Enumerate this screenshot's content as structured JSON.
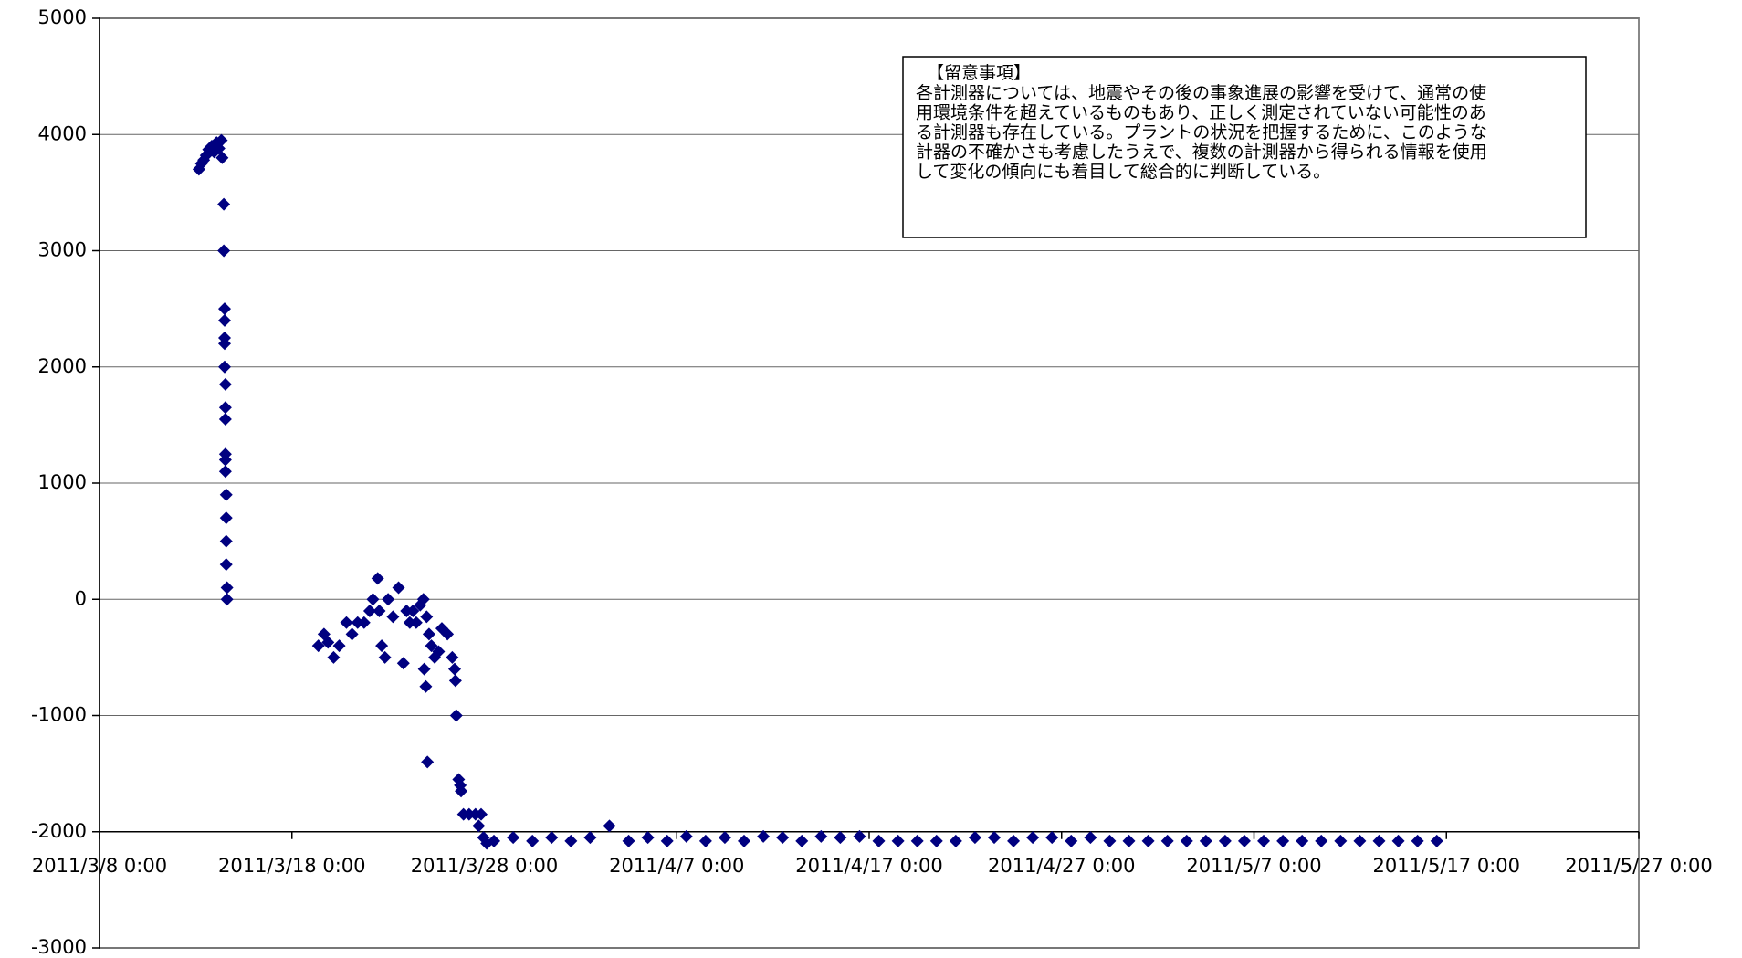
{
  "chart_data": {
    "type": "scatter",
    "color": "#000080",
    "marker": "diamond",
    "grid": true,
    "x_axis_crosses": -2000,
    "annotation": {
      "title": "【留意事項】",
      "lines": [
        "各計測器については、地震やその後の事象進展の影響を受けて、通常の使",
        "用環境条件を超えているものもあり、正しく測定されていない可能性のあ",
        "る計測器も存在している。プラントの状況を把握するために、このような",
        "計器の不確かさも考慮したうえで、複数の計測器から得られる情報を使用",
        "して変化の傾向にも着目して総合的に判断している。"
      ]
    },
    "xlim": [
      "2011/3/8 0:00",
      "2011/5/27 0:00"
    ],
    "xticks": [
      "2011/3/8 0:00",
      "2011/3/18 0:00",
      "2011/3/28 0:00",
      "2011/4/7 0:00",
      "2011/4/17 0:00",
      "2011/4/27 0:00",
      "2011/5/7 0:00",
      "2011/5/17 0:00",
      "2011/5/27 0:00"
    ],
    "ylim": [
      -3000,
      5000
    ],
    "yticks": [
      -3000,
      -2000,
      -1000,
      0,
      1000,
      2000,
      3000,
      4000,
      5000
    ],
    "x": [
      "2011/3/13 4:00",
      "2011/3/13 7:00",
      "2011/3/13 10:00",
      "2011/3/13 13:00",
      "2011/3/13 16:00",
      "2011/3/13 20:00",
      "2011/3/13 23:00",
      "2011/3/14 2:00",
      "2011/3/14 5:00",
      "2011/3/14 8:00",
      "2011/3/14 9:00",
      "2011/3/14 11:00",
      "2011/3/14 11:00",
      "2011/3/14 12:00",
      "2011/3/14 12:00",
      "2011/3/14 12:00",
      "2011/3/14 12:00",
      "2011/3/14 12:00",
      "2011/3/14 13:00",
      "2011/3/14 13:00",
      "2011/3/14 13:00",
      "2011/3/14 13:00",
      "2011/3/14 13:00",
      "2011/3/14 13:00",
      "2011/3/14 14:00",
      "2011/3/14 14:00",
      "2011/3/14 14:00",
      "2011/3/14 14:00",
      "2011/3/14 15:00",
      "2011/3/14 15:00",
      "2011/3/19 9:00",
      "2011/3/19 16:00",
      "2011/3/19 21:00",
      "2011/3/20 4:00",
      "2011/3/20 11:00",
      "2011/3/20 20:00",
      "2011/3/21 3:00",
      "2011/3/21 10:00",
      "2011/3/21 18:00",
      "2011/3/22 1:00",
      "2011/3/22 5:00",
      "2011/3/22 11:00",
      "2011/3/22 13:00",
      "2011/3/22 16:00",
      "2011/3/22 20:00",
      "2011/3/23 0:00",
      "2011/3/23 6:00",
      "2011/3/23 13:00",
      "2011/3/23 19:00",
      "2011/3/23 23:00",
      "2011/3/24 3:00",
      "2011/3/24 7:00",
      "2011/3/24 11:00",
      "2011/3/24 16:00",
      "2011/3/24 20:00",
      "2011/3/24 21:00",
      "2011/3/24 23:00",
      "2011/3/25 0:00",
      "2011/3/25 1:00",
      "2011/3/25 3:00",
      "2011/3/25 6:00",
      "2011/3/25 10:00",
      "2011/3/25 15:00",
      "2011/3/25 19:00",
      "2011/3/26 2:00",
      "2011/3/26 8:00",
      "2011/3/26 11:00",
      "2011/3/26 12:00",
      "2011/3/26 13:00",
      "2011/3/26 16:00",
      "2011/3/26 18:00",
      "2011/3/26 19:00",
      "2011/3/26 22:00",
      "2011/3/27 5:00",
      "2011/3/27 13:00",
      "2011/3/27 17:00",
      "2011/3/27 20:00",
      "2011/3/27 23:00",
      "2011/3/28 3:00",
      "2011/3/28 12:00",
      "2011/3/29 12:00",
      "2011/3/30 12:00",
      "2011/3/31 12:00",
      "2011/4/1 12:00",
      "2011/4/2 12:00",
      "2011/4/3 12:00",
      "2011/4/4 12:00",
      "2011/4/5 12:00",
      "2011/4/6 12:00",
      "2011/4/7 12:00",
      "2011/4/8 12:00",
      "2011/4/9 12:00",
      "2011/4/10 12:00",
      "2011/4/11 12:00",
      "2011/4/12 12:00",
      "2011/4/13 12:00",
      "2011/4/14 12:00",
      "2011/4/15 12:00",
      "2011/4/16 12:00",
      "2011/4/17 12:00",
      "2011/4/18 12:00",
      "2011/4/19 12:00",
      "2011/4/20 12:00",
      "2011/4/21 12:00",
      "2011/4/22 12:00",
      "2011/4/23 12:00",
      "2011/4/24 12:00",
      "2011/4/25 12:00",
      "2011/4/26 12:00",
      "2011/4/27 12:00",
      "2011/4/28 12:00",
      "2011/4/29 12:00",
      "2011/4/30 12:00",
      "2011/5/1 12:00",
      "2011/5/2 12:00",
      "2011/5/3 12:00",
      "2011/5/4 12:00",
      "2011/5/5 12:00",
      "2011/5/6 12:00",
      "2011/5/7 12:00",
      "2011/5/8 12:00",
      "2011/5/9 12:00",
      "2011/5/10 12:00",
      "2011/5/11 12:00",
      "2011/5/12 12:00",
      "2011/5/13 12:00",
      "2011/5/14 12:00",
      "2011/5/15 12:00",
      "2011/5/16 12:00"
    ],
    "values": [
      3700,
      3750,
      3780,
      3820,
      3870,
      3900,
      3850,
      3930,
      3880,
      3950,
      3800,
      3400,
      3000,
      2500,
      2400,
      2250,
      2200,
      2000,
      1850,
      1650,
      1550,
      1250,
      1200,
      1100,
      900,
      700,
      500,
      300,
      100,
      0,
      -400,
      -300,
      -370,
      -500,
      -400,
      -200,
      -300,
      -200,
      -200,
      -100,
      0,
      180,
      -100,
      -400,
      -500,
      0,
      -150,
      100,
      -550,
      -100,
      -200,
      -100,
      -200,
      -50,
      0,
      -600,
      -750,
      -150,
      -1400,
      -300,
      -400,
      -500,
      -450,
      -250,
      -300,
      -500,
      -600,
      -700,
      -1000,
      -1550,
      -1600,
      -1650,
      -1850,
      -1850,
      -1850,
      -1950,
      -1850,
      -2050,
      -2100,
      -2080,
      -2050,
      -2080,
      -2050,
      -2080,
      -2050,
      -1950,
      -2080,
      -2050,
      -2080,
      -2040,
      -2080,
      -2050,
      -2080,
      -2040,
      -2050,
      -2080,
      -2040,
      -2050,
      -2040,
      -2080,
      -2080,
      -2080,
      -2080,
      -2080,
      -2050,
      -2050,
      -2080,
      -2050,
      -2050,
      -2080,
      -2050,
      -2080,
      -2080,
      -2080,
      -2080,
      -2080,
      -2080,
      -2080,
      -2080,
      -2080,
      -2080,
      -2080,
      -2080,
      -2080,
      -2080,
      -2080,
      -2080,
      -2080,
      -2080
    ]
  }
}
